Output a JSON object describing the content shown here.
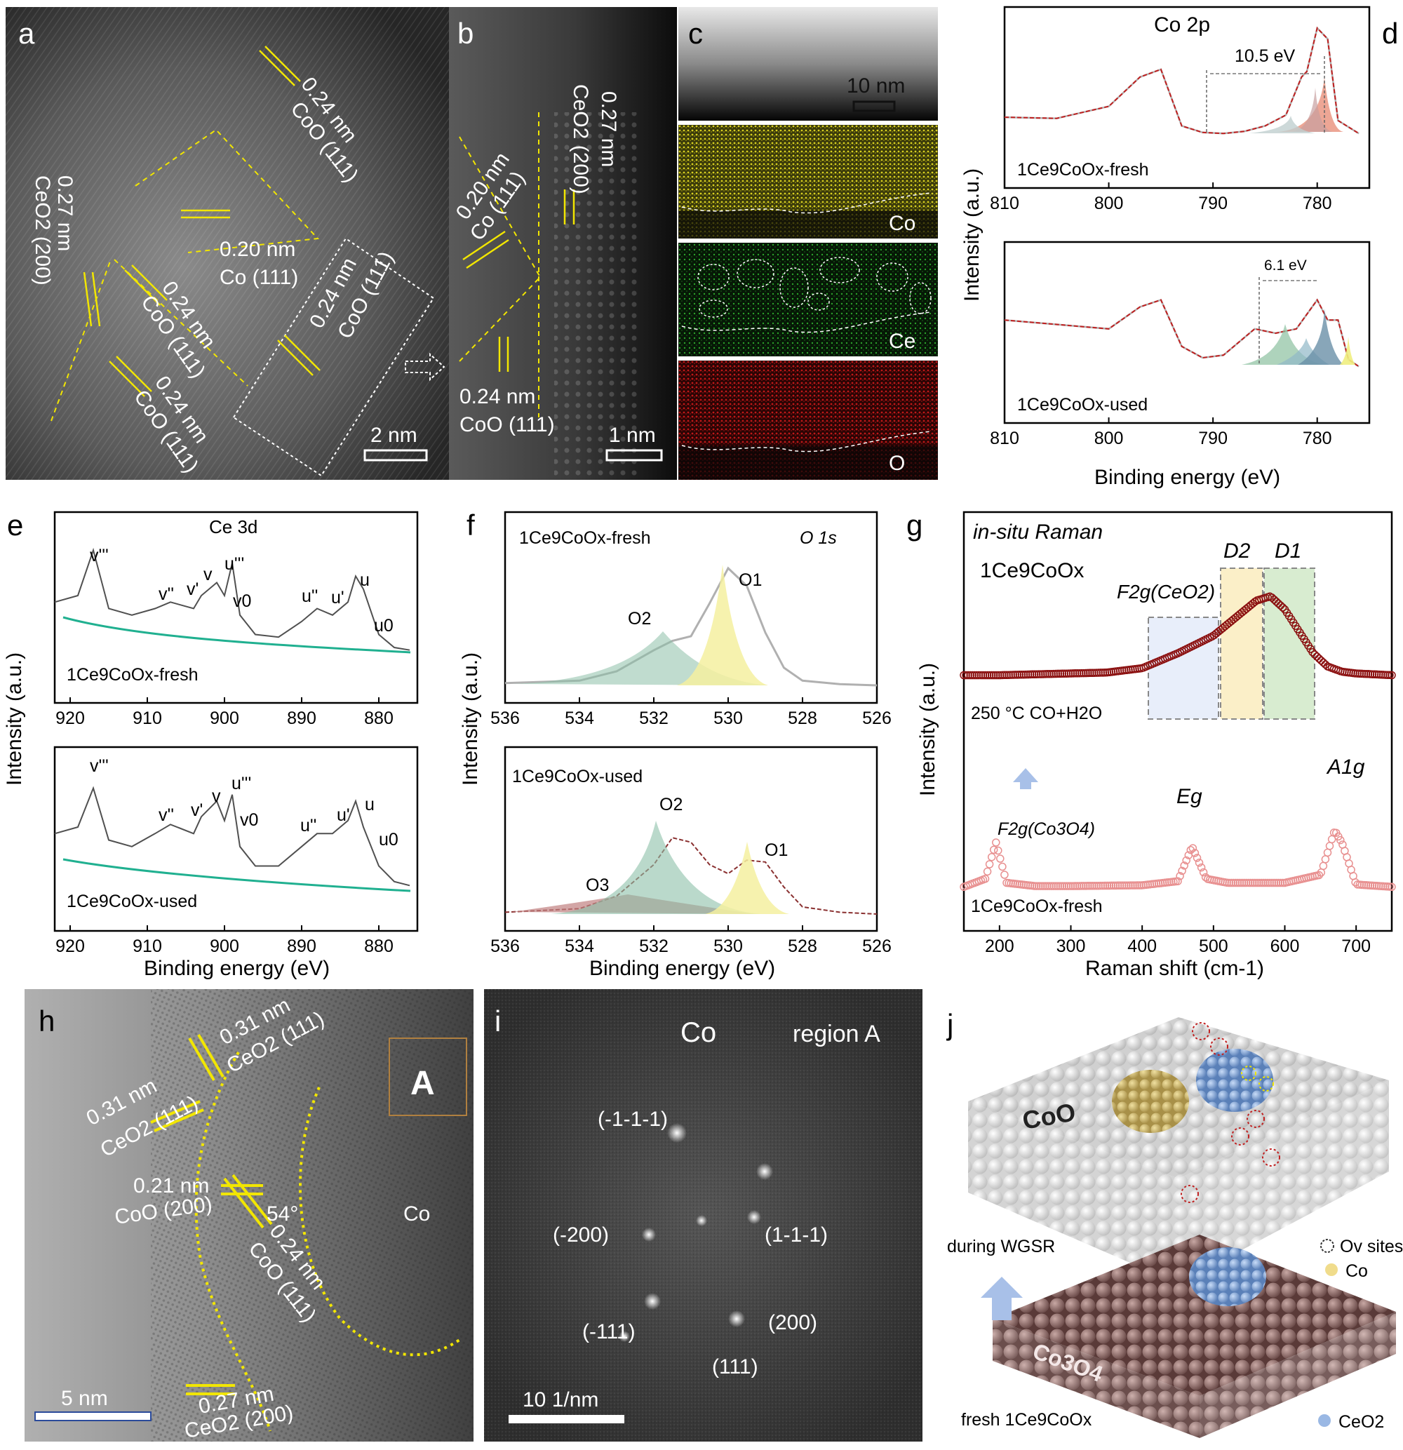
{
  "a": {
    "letter": "a",
    "labels": [
      {
        "d": "0.24 nm",
        "p": "CoO (111)"
      },
      {
        "d": "0.27 nm",
        "p": "CeO2 (200)"
      },
      {
        "d": "0.20 nm",
        "p": "Co (111)"
      },
      {
        "d": "0.24 nm",
        "p": "CoO (111)"
      },
      {
        "d": "0.24 nm",
        "p": "CoO (111)"
      },
      {
        "d": "0.24 nm",
        "p": "CoO (111)"
      }
    ],
    "scale": "2 nm"
  },
  "b": {
    "letter": "b",
    "labels": [
      {
        "d": "0.27 nm",
        "p": "CeO2 (200)"
      },
      {
        "d": "0.20 nm",
        "p": "Co (111)"
      },
      {
        "d": "0.24 nm",
        "p": "CoO (111)"
      }
    ],
    "scale": "1 nm"
  },
  "c": {
    "letter": "c",
    "scale": "10 nm",
    "maps": [
      "Co",
      "Ce",
      "O"
    ]
  },
  "d": {
    "letter": "d",
    "title": "Co 2p",
    "ylabel": "Intensity (a.u.)",
    "xlabel": "Binding energy (eV)",
    "top": {
      "sample": "1Ce9CoOx-fresh",
      "split": "10.5 eV"
    },
    "bottom": {
      "sample": "1Ce9CoOx-used",
      "split": "6.1 eV"
    }
  },
  "e": {
    "letter": "e",
    "title": "Ce 3d",
    "ylabel": "Intensity (a.u.)",
    "xlabel": "Binding energy (eV)",
    "top": {
      "sample": "1Ce9CoOx-fresh"
    },
    "bottom": {
      "sample": "1Ce9CoOx-used"
    },
    "peaks": [
      "v'''",
      "v''",
      "v'",
      "v",
      "u'''",
      "v0",
      "u''",
      "u'",
      "u",
      "u0"
    ]
  },
  "f": {
    "letter": "f",
    "title": "O 1s",
    "ylabel": "Intensity (a.u.)",
    "xlabel": "Binding energy (eV)",
    "top": {
      "sample": "1Ce9CoOx-fresh",
      "peaks": [
        "O2",
        "O1"
      ]
    },
    "bottom": {
      "sample": "1Ce9CoOx-used",
      "peaks": [
        "O3",
        "O2",
        "O1"
      ]
    }
  },
  "g": {
    "letter": "g",
    "title": "in-situ Raman",
    "sample": "1Ce9CoOx",
    "condition": "250 °C CO+H2O",
    "fresh": "1Ce9CoOx-fresh",
    "ylabel": "Intensity (a.u.)",
    "xlabel": "Raman shift (cm-1)",
    "bands": [
      "F2g(CeO2)",
      "D2",
      "D1",
      "F2g(Co3O4)",
      "Eg",
      "A1g"
    ]
  },
  "h": {
    "letter": "h",
    "labels": [
      {
        "d": "0.31 nm",
        "p": "CeO2 (111)"
      },
      {
        "d": "0.31 nm",
        "p": "CeO2 (111)"
      },
      {
        "d": "0.21 nm",
        "p": "CoO (200)"
      },
      {
        "d": "0.24 nm",
        "p": "CoO (111)"
      },
      {
        "d": "0.27 nm",
        "p": "CeO2 (200)"
      }
    ],
    "angle": "54°",
    "region": "A",
    "phase": "Co",
    "scale": "5 nm"
  },
  "i": {
    "letter": "i",
    "title": "Co",
    "region": "region A",
    "spots": [
      "(-1-1-1)",
      "(-200)",
      "(1-1-1)",
      "(-111)",
      "(200)",
      "(111)"
    ],
    "scale": "10 1/nm"
  },
  "j": {
    "letter": "j",
    "top": "CoO",
    "bottom": "Co3O4",
    "arrow": "during  WGSR",
    "fresh": "fresh 1Ce9CoOx",
    "legend": [
      "Ov sites",
      "Co",
      "CeO2"
    ]
  },
  "colors": {
    "yellow": "#f2e600",
    "co_map": "#b8b020",
    "ce_map": "#2a9a2a",
    "o_map": "#c01818",
    "fresh_raman": "#e89090",
    "used_raman": "#8b1010",
    "fit": "#c02020"
  },
  "chart_data": [
    {
      "type": "line",
      "panel": "d",
      "title": "Co 2p",
      "xlabel": "Binding energy (eV)",
      "ylabel": "Intensity (a.u.)",
      "xlim": [
        810,
        775
      ],
      "xticks": [
        810,
        800,
        790,
        780
      ],
      "series": [
        {
          "name": "1Ce9CoOx-fresh",
          "x": [
            810,
            805,
            800,
            797,
            795,
            793,
            791,
            789,
            787,
            785,
            783,
            781.5,
            781,
            780,
            779,
            778,
            776
          ],
          "y": [
            0.18,
            0.17,
            0.28,
            0.55,
            0.62,
            0.1,
            0.04,
            0.03,
            0.05,
            0.1,
            0.2,
            0.55,
            0.6,
            1.0,
            0.9,
            0.15,
            0.03
          ]
        },
        {
          "name": "1Ce9CoOx-used",
          "x": [
            810,
            805,
            800,
            797,
            795,
            793,
            791,
            789,
            787,
            786,
            784,
            782,
            780,
            779,
            778,
            777,
            776
          ],
          "y": [
            0.55,
            0.5,
            0.45,
            0.7,
            0.78,
            0.25,
            0.12,
            0.15,
            0.35,
            0.45,
            0.4,
            0.45,
            0.78,
            0.55,
            0.55,
            0.1,
            0.02
          ]
        }
      ],
      "annotations": [
        "10.5 eV",
        "6.1 eV"
      ]
    },
    {
      "type": "line",
      "panel": "e",
      "title": "Ce 3d",
      "xlabel": "Binding energy (eV)",
      "ylabel": "Intensity (a.u.)",
      "xlim": [
        922,
        875
      ],
      "xticks": [
        920,
        910,
        900,
        890,
        880
      ],
      "series": [
        {
          "name": "1Ce9CoOx-fresh",
          "x": [
            922,
            919,
            917,
            915,
            912,
            909,
            907,
            904,
            903,
            901,
            900,
            899,
            898,
            896,
            893,
            890,
            888,
            886,
            884,
            883,
            882,
            880,
            878,
            876
          ],
          "y": [
            0.55,
            0.6,
            0.95,
            0.5,
            0.45,
            0.5,
            0.55,
            0.5,
            0.6,
            0.7,
            0.6,
            0.85,
            0.45,
            0.3,
            0.28,
            0.4,
            0.5,
            0.45,
            0.55,
            0.75,
            0.65,
            0.3,
            0.2,
            0.18
          ]
        },
        {
          "name": "1Ce9CoOx-used",
          "x": [
            922,
            919,
            917,
            915,
            912,
            909,
            907,
            904,
            903,
            901,
            900,
            899,
            898,
            896,
            893,
            890,
            888,
            886,
            884,
            883,
            882,
            880,
            878,
            876
          ],
          "y": [
            0.55,
            0.6,
            0.9,
            0.5,
            0.45,
            0.55,
            0.62,
            0.55,
            0.68,
            0.8,
            0.65,
            0.85,
            0.45,
            0.3,
            0.3,
            0.45,
            0.55,
            0.55,
            0.65,
            0.8,
            0.6,
            0.3,
            0.18,
            0.15
          ]
        }
      ]
    },
    {
      "type": "line",
      "panel": "f",
      "title": "O 1s",
      "xlabel": "Binding energy (eV)",
      "ylabel": "Intensity (a.u.)",
      "xlim": [
        536,
        526
      ],
      "xticks": [
        536,
        534,
        532,
        530,
        528,
        526
      ],
      "series": [
        {
          "name": "1Ce9CoOx-fresh",
          "x": [
            536,
            534,
            533,
            532,
            531.5,
            531,
            530.5,
            530,
            529.5,
            529,
            528.5,
            528,
            527,
            526
          ],
          "y": [
            0.02,
            0.04,
            0.12,
            0.3,
            0.38,
            0.42,
            0.7,
            1.0,
            0.85,
            0.45,
            0.15,
            0.04,
            0.01,
            0.0
          ]
        },
        {
          "name": "1Ce9CoOx-used",
          "x": [
            536,
            534,
            533,
            532,
            531.5,
            531,
            530.5,
            530,
            529.5,
            529,
            528.5,
            528,
            527,
            526
          ],
          "y": [
            0.02,
            0.06,
            0.2,
            0.55,
            0.85,
            0.8,
            0.55,
            0.45,
            0.6,
            0.58,
            0.3,
            0.08,
            0.02,
            0.0
          ]
        }
      ]
    },
    {
      "type": "scatter",
      "panel": "g",
      "title": "in-situ Raman",
      "xlabel": "Raman shift (cm-1)",
      "ylabel": "Intensity (a.u.)",
      "xlim": [
        150,
        750
      ],
      "xticks": [
        200,
        300,
        400,
        500,
        600,
        700
      ],
      "series": [
        {
          "name": "250 °C CO+H2O",
          "x": [
            150,
            200,
            250,
            300,
            350,
            400,
            450,
            500,
            530,
            560,
            580,
            600,
            620,
            640,
            660,
            680,
            700,
            750
          ],
          "y": [
            0.1,
            0.1,
            0.11,
            0.12,
            0.13,
            0.18,
            0.35,
            0.55,
            0.75,
            0.95,
            1.0,
            0.85,
            0.6,
            0.35,
            0.2,
            0.14,
            0.12,
            0.1
          ]
        },
        {
          "name": "1Ce9CoOx-fresh",
          "x": [
            150,
            180,
            195,
            210,
            250,
            300,
            400,
            450,
            470,
            490,
            520,
            600,
            650,
            670,
            680,
            700,
            750
          ],
          "y": [
            0.05,
            0.15,
            0.6,
            0.1,
            0.06,
            0.06,
            0.07,
            0.12,
            0.55,
            0.15,
            0.1,
            0.1,
            0.2,
            0.75,
            0.6,
            0.08,
            0.05
          ]
        }
      ],
      "bands": [
        "F2g(CeO2)",
        "D2",
        "D1",
        "F2g(Co3O4)",
        "Eg",
        "A1g"
      ]
    }
  ]
}
